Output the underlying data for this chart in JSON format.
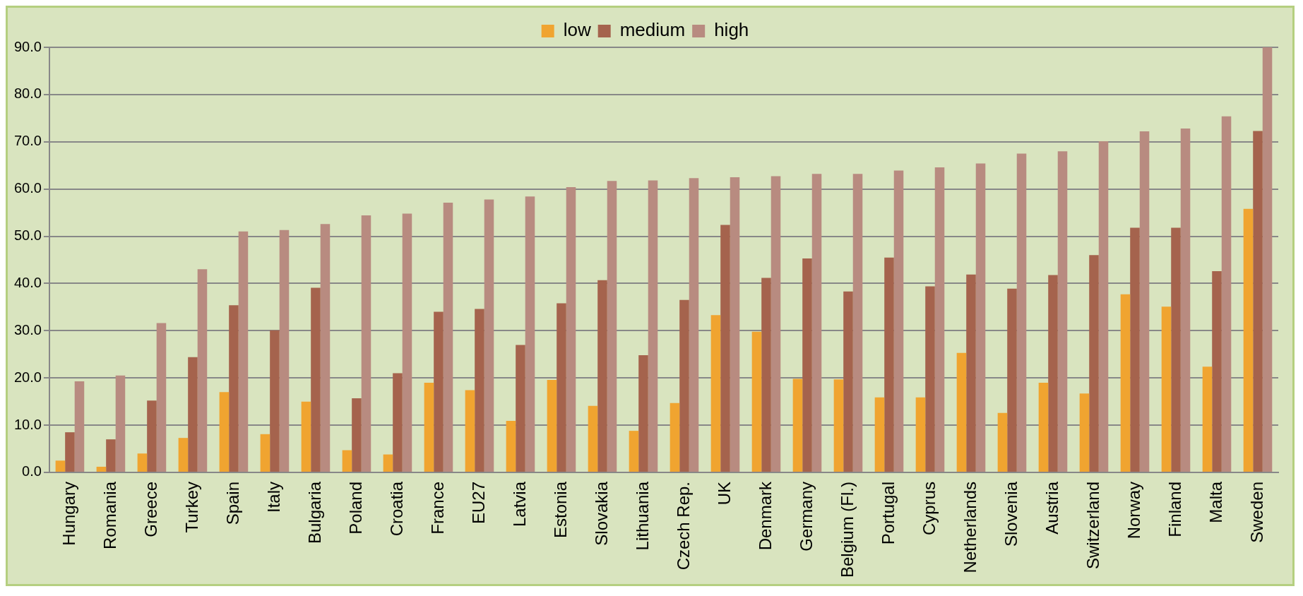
{
  "chart_data": {
    "type": "bar",
    "categories": [
      "Hungary",
      "Romania",
      "Greece",
      "Turkey",
      "Spain",
      "Italy",
      "Bulgaria",
      "Poland",
      "Croatia",
      "France",
      "EU27",
      "Latvia",
      "Estonia",
      "Slovakia",
      "Lithuania",
      "Czech Rep.",
      "UK",
      "Denmark",
      "Germany",
      "Belgium (Fl.)",
      "Portugal",
      "Cyprus",
      "Netherlands",
      "Slovenia",
      "Austria",
      "Switzerland",
      "Norway",
      "Finland",
      "Malta",
      "Sweden"
    ],
    "series": [
      {
        "name": "low",
        "color": "#f0a430",
        "values": [
          2.5,
          1.2,
          4.0,
          7.3,
          17.0,
          8.1,
          15.0,
          4.7,
          3.8,
          19.0,
          17.4,
          10.9,
          19.6,
          14.1,
          8.8,
          14.7,
          33.3,
          29.8,
          19.8,
          19.7,
          15.9,
          15.9,
          25.3,
          12.6,
          19.0,
          16.7,
          37.7,
          35.1,
          22.4,
          55.8
        ]
      },
      {
        "name": "medium",
        "color": "#a5634d",
        "values": [
          8.5,
          7.0,
          15.2,
          24.4,
          35.4,
          30.1,
          39.1,
          15.7,
          21.0,
          34.0,
          34.6,
          27.0,
          35.8,
          40.7,
          24.8,
          36.5,
          52.4,
          41.2,
          45.3,
          38.3,
          45.5,
          39.4,
          41.9,
          38.9,
          41.8,
          46.0,
          51.8,
          51.8,
          42.6,
          72.3
        ]
      },
      {
        "name": "high",
        "color": "#b88b80",
        "values": [
          19.3,
          20.5,
          31.6,
          43.0,
          51.0,
          51.3,
          52.6,
          54.4,
          54.8,
          57.1,
          57.8,
          58.4,
          60.4,
          61.7,
          61.8,
          62.3,
          62.5,
          62.7,
          63.2,
          63.2,
          63.9,
          64.6,
          65.4,
          67.5,
          68.0,
          70.1,
          72.2,
          72.8,
          75.4,
          90.0
        ]
      }
    ],
    "ylim": [
      0,
      90
    ],
    "yticks": [
      {
        "value": 0,
        "label": "0.0"
      },
      {
        "value": 10,
        "label": "10.0"
      },
      {
        "value": 20,
        "label": "20.0"
      },
      {
        "value": 30,
        "label": "30.0"
      },
      {
        "value": 40,
        "label": "40.0"
      },
      {
        "value": 50,
        "label": "50.0"
      },
      {
        "value": 60,
        "label": "60.0"
      },
      {
        "value": 70,
        "label": "70.0"
      },
      {
        "value": 80,
        "label": "80.0"
      },
      {
        "value": 90,
        "label": "90.0"
      }
    ],
    "grid": "y",
    "legend": "top"
  }
}
